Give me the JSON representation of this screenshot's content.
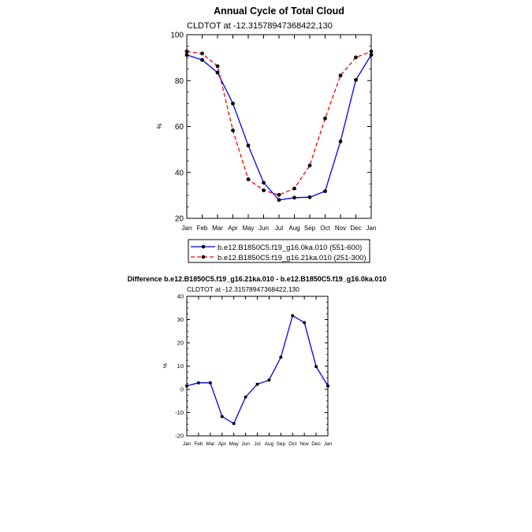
{
  "chart_data": [
    {
      "type": "line",
      "title": "Annual Cycle of Total Cloud",
      "subtitle": "CLDTOT at -12.31578947368422,130",
      "xlabel": "",
      "ylabel": "%",
      "categories": [
        "Jan",
        "Feb",
        "Mar",
        "Apr",
        "May",
        "Jun",
        "Jul",
        "Aug",
        "Sep",
        "Oct",
        "Nov",
        "Dec",
        "Jan"
      ],
      "ylim": [
        20,
        100
      ],
      "yticks": [
        20,
        40,
        60,
        80,
        100
      ],
      "grid": false,
      "legend_position": "below",
      "series": [
        {
          "name": "b.e12.B1850C5.f19_g16.0ka.010 (551-600)",
          "color": "#0000ff",
          "dash": "solid",
          "values": [
            91.2,
            89,
            83.5,
            70,
            51.7,
            35.5,
            28,
            29,
            29.2,
            31.8,
            53.5,
            80.3,
            91.2
          ]
        },
        {
          "name": "b.e12.B1850C5.f19_g16.21ka.010 (251-300)",
          "color": "#ff0000",
          "dash": "dashed",
          "values": [
            92.7,
            91.8,
            86.3,
            58.3,
            37,
            32.2,
            30.2,
            33,
            43,
            63.5,
            82.2,
            90.1,
            92.7
          ]
        }
      ]
    },
    {
      "type": "line",
      "title": "Difference b.e12.B1850C5.f19_g16.21ka.010 - b.e12.B1850C5.f19_g16.0ka.010",
      "subtitle": "CLDTOT at -12.31578947368422,130",
      "xlabel": "",
      "ylabel": "%",
      "categories": [
        "Jan",
        "Feb",
        "Mar",
        "Apr",
        "May",
        "Jun",
        "Jul",
        "Aug",
        "Sep",
        "Oct",
        "Nov",
        "Dec",
        "Jan"
      ],
      "ylim": [
        -20,
        40
      ],
      "yticks": [
        -20,
        -10,
        0,
        10,
        20,
        30,
        40
      ],
      "grid": false,
      "series": [
        {
          "name": "Difference",
          "color": "#0000ff",
          "dash": "solid",
          "values": [
            1.5,
            2.8,
            2.8,
            -11.7,
            -14.7,
            -3.3,
            2.2,
            4,
            13.8,
            31.7,
            28.7,
            9.8,
            1.5
          ]
        }
      ]
    }
  ]
}
